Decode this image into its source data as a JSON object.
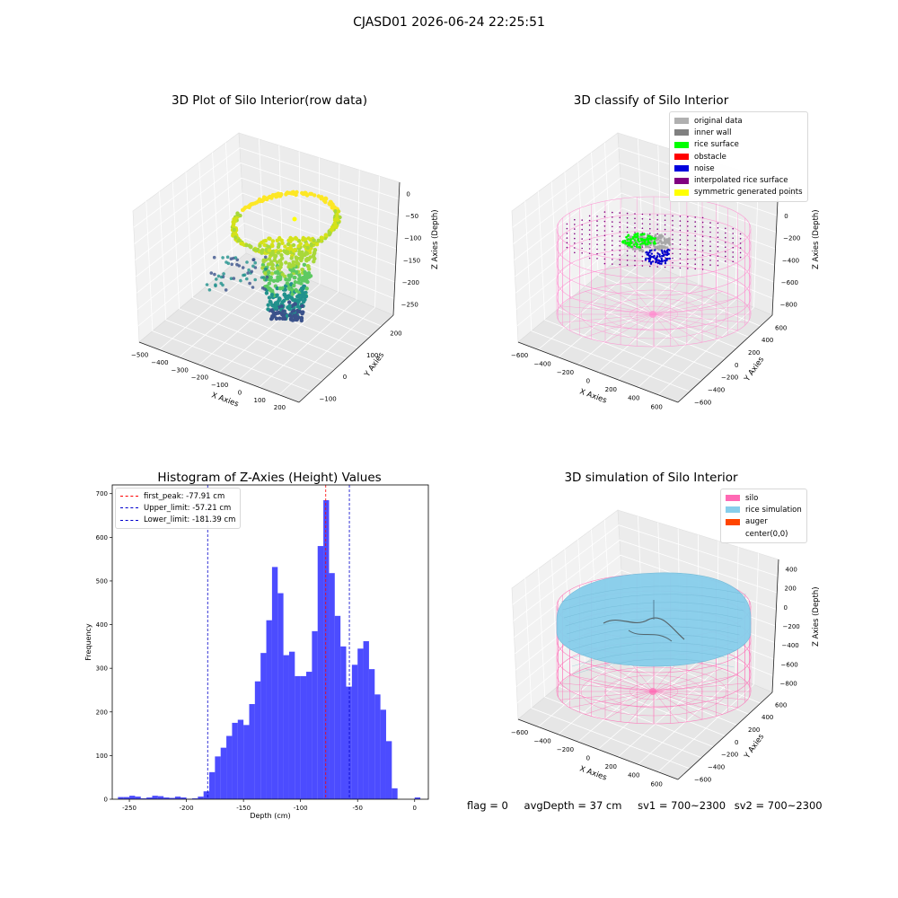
{
  "suptitle": "CJASD01 2026-06-24 22:25:51",
  "panels": {
    "raw": {
      "title": "3D Plot of Silo Interior(row data)",
      "xlabel": "X Axies",
      "ylabel": "Y Axies",
      "zlabel": "Z Axies (Depth)",
      "xticks": [
        "−500",
        "−400",
        "−300",
        "−200",
        "−100",
        "0",
        "100",
        "200"
      ],
      "yticks": [
        "−100",
        "0",
        "100",
        "200"
      ],
      "zticks": [
        "0",
        "−50",
        "−100",
        "−150",
        "−200",
        "−250"
      ]
    },
    "classify": {
      "title": "3D classify of Silo Interior",
      "xlabel": "X Axies",
      "ylabel": "Y Axies",
      "zlabel": "Z Axies (Depth)",
      "xticks": [
        "−600",
        "−400",
        "−200",
        "0",
        "200",
        "400",
        "600"
      ],
      "yticks": [
        "−600",
        "−400",
        "−200",
        "0",
        "200",
        "400",
        "600"
      ],
      "zticks": [
        "200",
        "0",
        "−200",
        "−400",
        "−600",
        "−800"
      ],
      "legend": [
        {
          "label": "original data",
          "color": "#b0b0b0"
        },
        {
          "label": "inner wall",
          "color": "#808080"
        },
        {
          "label": "rice surface",
          "color": "#00ff00"
        },
        {
          "label": "obstacle",
          "color": "#ff0000"
        },
        {
          "label": "noise",
          "color": "#0000dd"
        },
        {
          "label": "interpolated rice surface",
          "color": "#800080"
        },
        {
          "label": "symmetric generated points",
          "color": "#ffff00"
        }
      ]
    },
    "histogram": {
      "title": "Histogram of Z-Axies (Height) Values",
      "xlabel": "Depth (cm)",
      "ylabel": "Frequency",
      "legend": [
        {
          "label": "first_peak: -77.91 cm",
          "color": "#ff0000"
        },
        {
          "label": "Upper_limit: -57.21 cm",
          "color": "#0000cc"
        },
        {
          "label": "Lower_limit: -181.39 cm",
          "color": "#0000cc"
        }
      ]
    },
    "simulation": {
      "title": "3D simulation of Silo Interior",
      "xlabel": "X Axies",
      "ylabel": "Y Axies",
      "zlabel": "Z Axies (Depth)",
      "xticks": [
        "−600",
        "−400",
        "−200",
        "0",
        "200",
        "400",
        "600"
      ],
      "yticks": [
        "−600",
        "−400",
        "−200",
        "0",
        "200",
        "400",
        "600"
      ],
      "zticks": [
        "400",
        "200",
        "0",
        "−200",
        "−400",
        "−600",
        "−800"
      ],
      "legend": [
        {
          "label": "silo",
          "color": "#ff69b4"
        },
        {
          "label": "rice simulation",
          "color": "#87ceeb"
        },
        {
          "label": "auger",
          "color": "#ff4500"
        },
        {
          "label": "center(0,0)",
          "color": "#ffffff"
        }
      ]
    }
  },
  "status": {
    "flag": "flag = 0",
    "avg_depth": "avgDepth = 37 cm",
    "sv1": "sv1 = 700~2300",
    "sv2": "sv2 = 700~2300"
  },
  "chart_data": [
    {
      "type": "scatter",
      "title": "3D Plot of Silo Interior(row data)",
      "xlabel": "X Axies",
      "ylabel": "Y Axies",
      "zlabel": "Z Axies (Depth)",
      "xlim": [
        -500,
        200
      ],
      "ylim": [
        -150,
        250
      ],
      "zlim": [
        -270,
        0
      ],
      "colormap": "viridis"
    },
    {
      "type": "scatter",
      "title": "3D classify of Silo Interior",
      "xlim": [
        -650,
        650
      ],
      "ylim": [
        -650,
        650
      ],
      "zlim": [
        -850,
        300
      ],
      "series": [
        "original data",
        "inner wall",
        "rice surface",
        "obstacle",
        "noise",
        "interpolated rice surface",
        "symmetric generated points"
      ]
    },
    {
      "type": "bar",
      "title": "Histogram of Z-Axies (Height) Values",
      "xlabel": "Depth (cm)",
      "ylabel": "Frequency",
      "xlim": [
        -265,
        12
      ],
      "ylim": [
        0,
        720
      ],
      "bin_width": 5,
      "bin_starts": [
        -260,
        -255,
        -250,
        -245,
        -240,
        -235,
        -230,
        -225,
        -220,
        -215,
        -210,
        -205,
        -200,
        -195,
        -190,
        -185,
        -180,
        -175,
        -170,
        -165,
        -160,
        -155,
        -150,
        -145,
        -140,
        -135,
        -130,
        -125,
        -120,
        -115,
        -110,
        -105,
        -100,
        -95,
        -90,
        -85,
        -80,
        -75,
        -70,
        -65,
        -60,
        -55,
        -50,
        -45,
        -40,
        -35,
        -30,
        -25,
        -20,
        -15,
        -10,
        -5,
        0
      ],
      "values": [
        5,
        5,
        8,
        6,
        2,
        4,
        8,
        7,
        4,
        3,
        6,
        4,
        1,
        2,
        6,
        18,
        62,
        98,
        118,
        145,
        175,
        182,
        170,
        218,
        270,
        335,
        410,
        532,
        472,
        330,
        338,
        282,
        282,
        292,
        385,
        580,
        685,
        518,
        420,
        350,
        258,
        308,
        345,
        362,
        298,
        240,
        205,
        133,
        25,
        0,
        0,
        0,
        4
      ],
      "first_peak": -77.91,
      "upper_limit": -57.21,
      "lower_limit": -181.39
    },
    {
      "type": "area",
      "title": "3D simulation of Silo Interior",
      "xlim": [
        -650,
        650
      ],
      "ylim": [
        -650,
        650
      ],
      "zlim": [
        -850,
        450
      ],
      "series": [
        "silo",
        "rice simulation",
        "auger",
        "center(0,0)"
      ]
    }
  ]
}
